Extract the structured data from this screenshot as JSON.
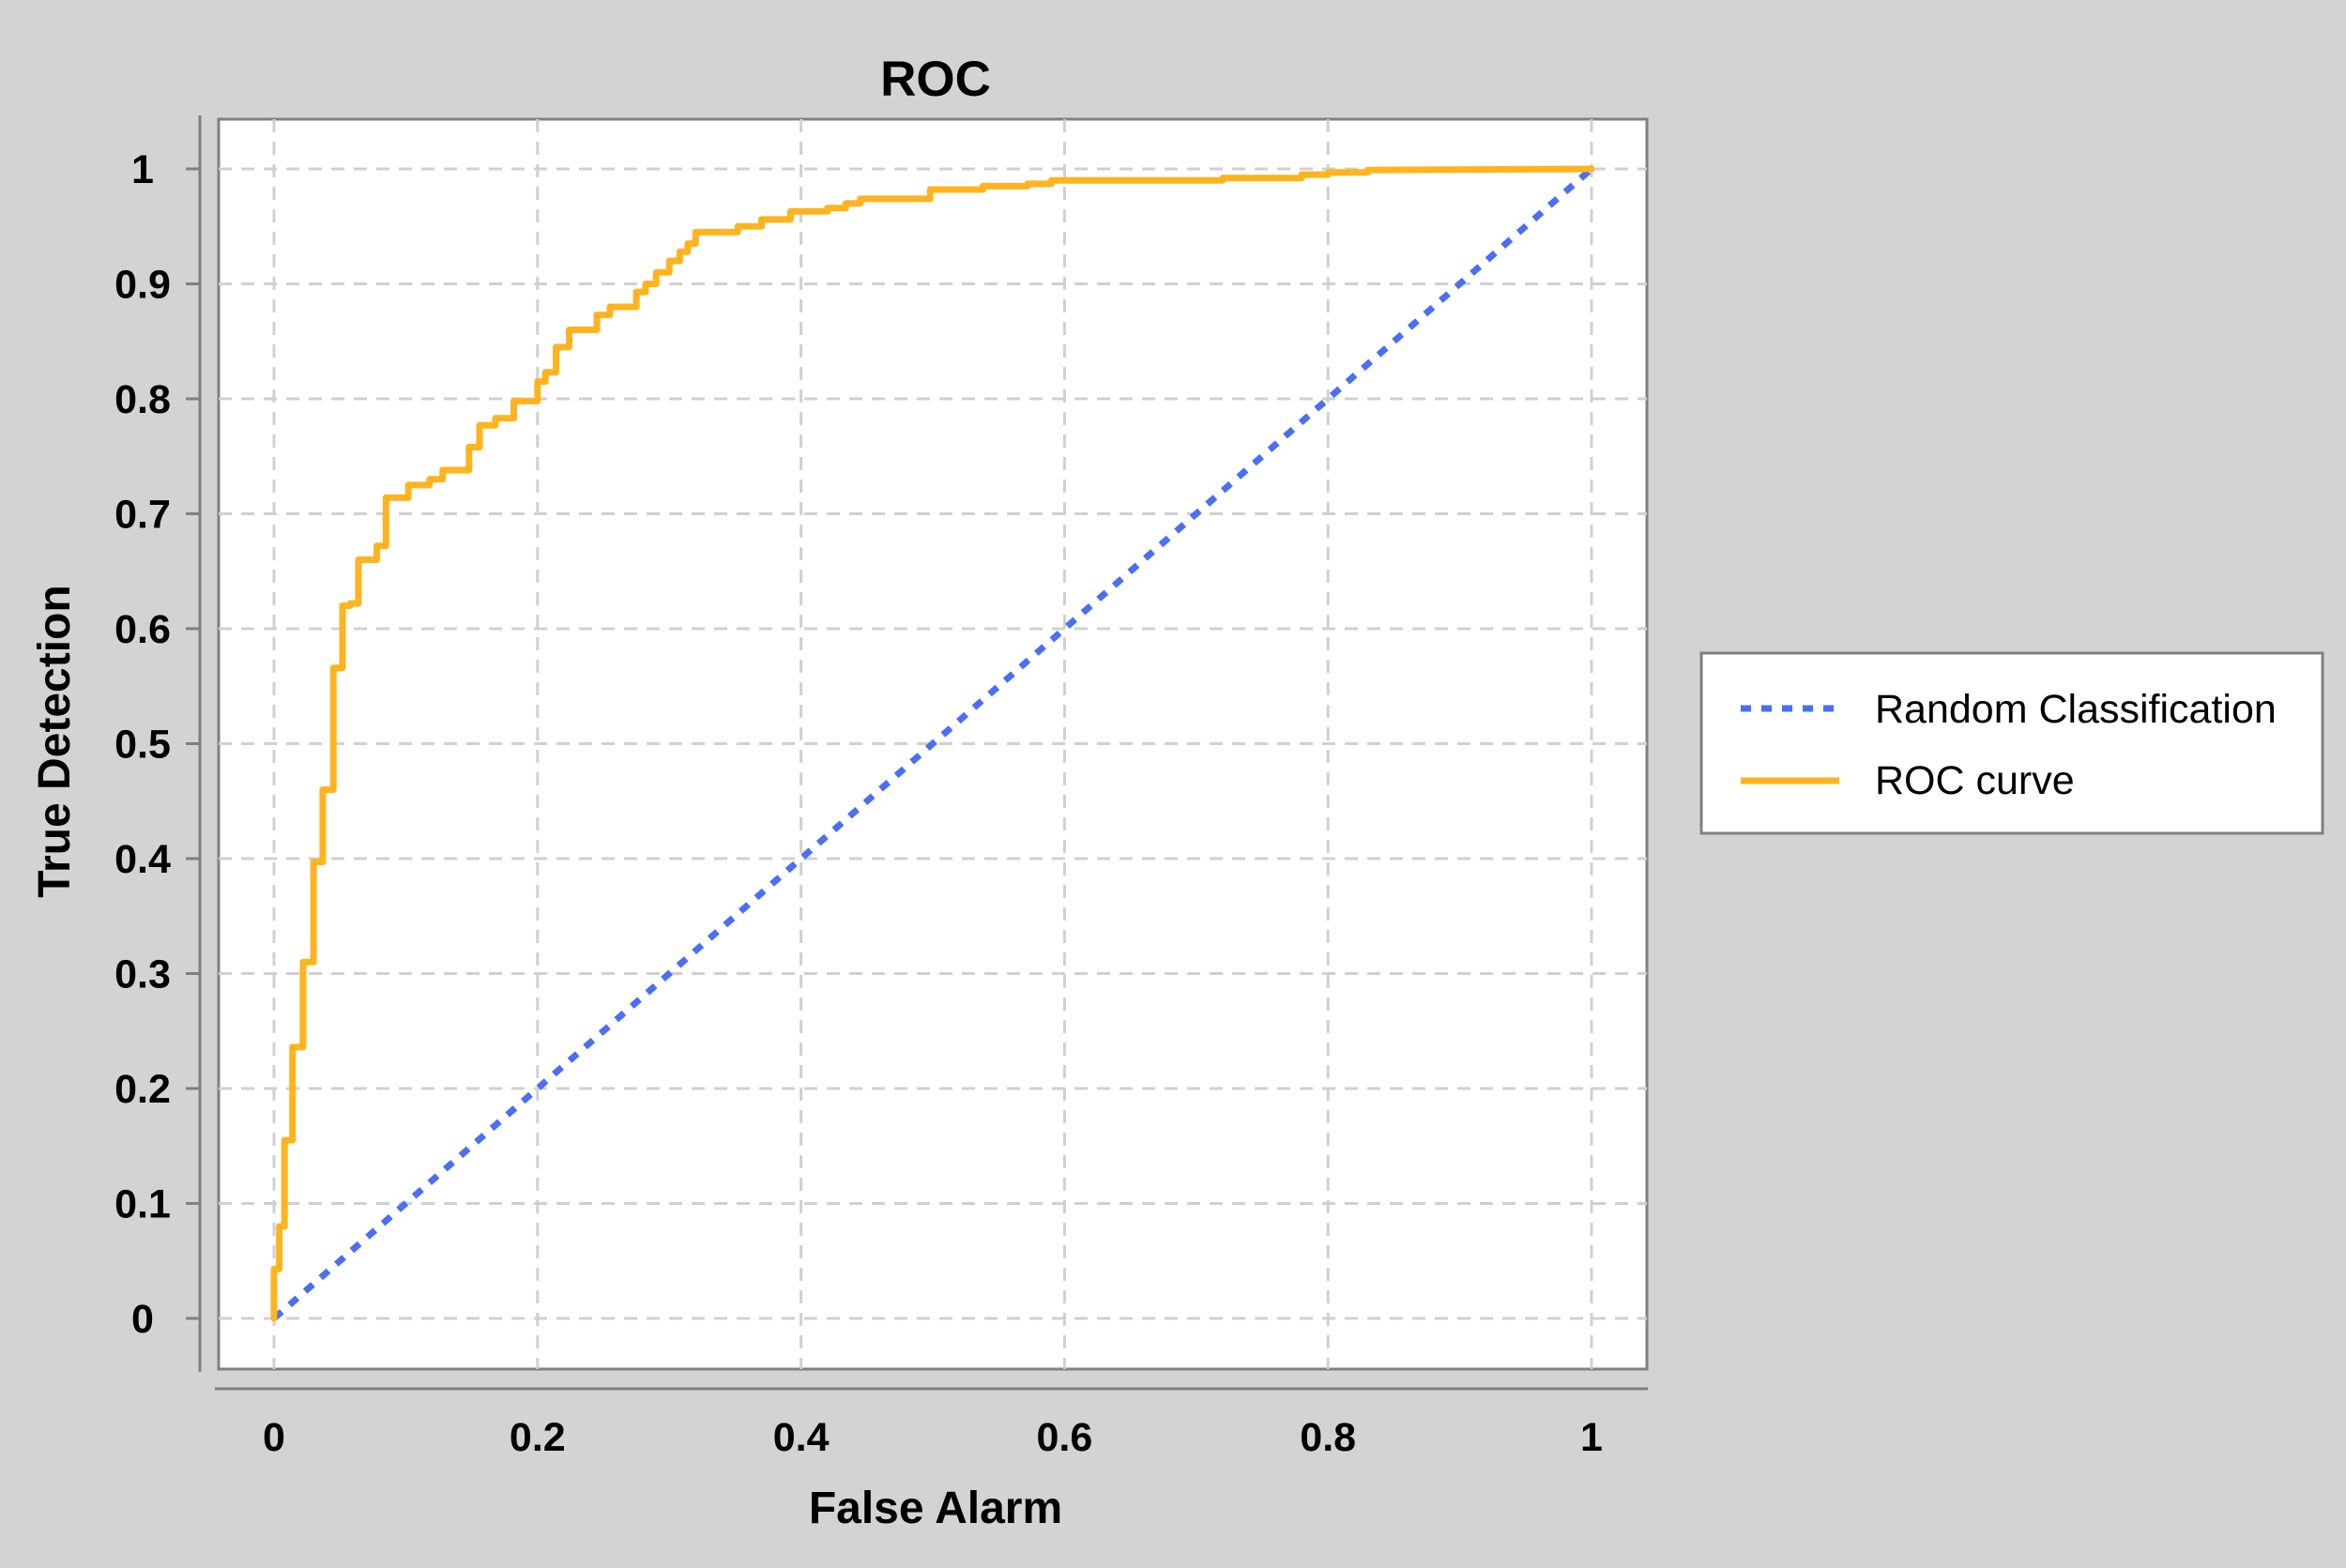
{
  "chart_data": {
    "type": "line",
    "title": "ROC",
    "xlabel": "False Alarm",
    "ylabel": "True Detection",
    "xlim": [
      0,
      1
    ],
    "ylim": [
      0,
      1
    ],
    "x_ticks": [
      "0",
      "0.2",
      "0.4",
      "0.6",
      "0.8",
      "1"
    ],
    "y_ticks": [
      "0",
      "0.1",
      "0.2",
      "0.3",
      "0.4",
      "0.5",
      "0.6",
      "0.7",
      "0.8",
      "0.9",
      "1"
    ],
    "grid": true,
    "legend_position": "right",
    "series": [
      {
        "name": "Random Classification",
        "color": "#4a6ef5",
        "style": "dotted",
        "x": [
          0,
          1
        ],
        "y": [
          0,
          1
        ]
      },
      {
        "name": "ROC curve",
        "color": "#ffb31f",
        "style": "solid",
        "x": [
          0.0,
          0.0,
          0.004,
          0.004,
          0.008,
          0.008,
          0.014,
          0.014,
          0.022,
          0.022,
          0.03,
          0.03,
          0.037,
          0.037,
          0.045,
          0.045,
          0.052,
          0.052,
          0.058,
          0.058,
          0.064,
          0.064,
          0.078,
          0.078,
          0.085,
          0.085,
          0.102,
          0.102,
          0.118,
          0.118,
          0.128,
          0.128,
          0.148,
          0.148,
          0.156,
          0.156,
          0.168,
          0.168,
          0.182,
          0.182,
          0.2,
          0.2,
          0.206,
          0.206,
          0.214,
          0.214,
          0.224,
          0.224,
          0.245,
          0.245,
          0.255,
          0.255,
          0.275,
          0.275,
          0.282,
          0.282,
          0.29,
          0.29,
          0.3,
          0.3,
          0.308,
          0.308,
          0.314,
          0.314,
          0.32,
          0.32,
          0.352,
          0.352,
          0.37,
          0.37,
          0.392,
          0.392,
          0.42,
          0.42,
          0.434,
          0.434,
          0.445,
          0.445,
          0.498,
          0.498,
          0.538,
          0.538,
          0.572,
          0.572,
          0.59,
          0.59,
          0.72,
          0.72,
          0.78,
          0.78,
          0.8,
          0.8,
          0.83,
          0.83,
          1.0
        ],
        "y": [
          0.0,
          0.043,
          0.043,
          0.08,
          0.08,
          0.155,
          0.155,
          0.236,
          0.236,
          0.31,
          0.31,
          0.397,
          0.397,
          0.46,
          0.46,
          0.566,
          0.566,
          0.62,
          0.62,
          0.622,
          0.622,
          0.66,
          0.66,
          0.672,
          0.672,
          0.714,
          0.714,
          0.725,
          0.725,
          0.73,
          0.73,
          0.738,
          0.738,
          0.758,
          0.758,
          0.777,
          0.777,
          0.783,
          0.783,
          0.798,
          0.798,
          0.815,
          0.815,
          0.823,
          0.823,
          0.845,
          0.845,
          0.86,
          0.86,
          0.873,
          0.873,
          0.88,
          0.88,
          0.893,
          0.893,
          0.9,
          0.9,
          0.91,
          0.91,
          0.92,
          0.92,
          0.928,
          0.928,
          0.935,
          0.935,
          0.945,
          0.945,
          0.95,
          0.95,
          0.956,
          0.956,
          0.963,
          0.963,
          0.966,
          0.966,
          0.97,
          0.97,
          0.974,
          0.974,
          0.982,
          0.982,
          0.985,
          0.985,
          0.987,
          0.987,
          0.99,
          0.99,
          0.992,
          0.992,
          0.995,
          0.995,
          0.997,
          0.997,
          0.999,
          1.0
        ]
      }
    ]
  }
}
